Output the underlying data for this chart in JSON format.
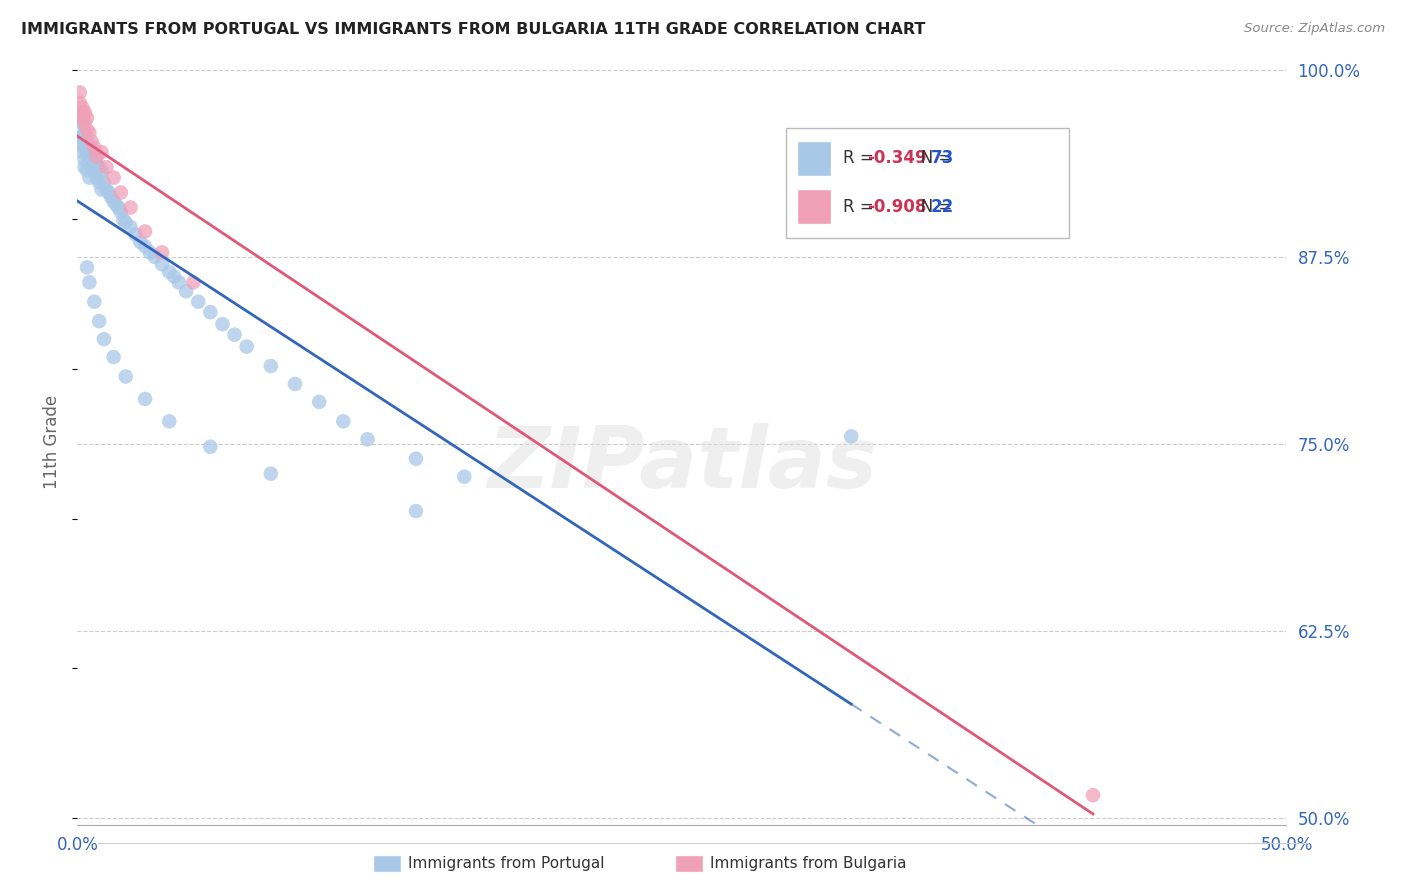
{
  "title": "IMMIGRANTS FROM PORTUGAL VS IMMIGRANTS FROM BULGARIA 11TH GRADE CORRELATION CHART",
  "source": "Source: ZipAtlas.com",
  "ylabel": "11th Grade",
  "xlim": [
    0.0,
    0.5
  ],
  "ylim": [
    0.495,
    1.008
  ],
  "xticks": [
    0.0,
    0.1,
    0.2,
    0.3,
    0.4,
    0.5
  ],
  "xticklabels": [
    "0.0%",
    "",
    "",
    "",
    "",
    "50.0%"
  ],
  "yticks_right": [
    1.0,
    0.875,
    0.75,
    0.625,
    0.5
  ],
  "ytick_right_labels": [
    "100.0%",
    "87.5%",
    "75.0%",
    "62.5%",
    "50.0%"
  ],
  "legend_label1": "Immigrants from Portugal",
  "legend_label2": "Immigrants from Bulgaria",
  "blue_scatter_color": "#a8c8e8",
  "blue_line_color": "#3366bb",
  "pink_scatter_color": "#f0a0b8",
  "pink_line_color": "#e05878",
  "r_color": "#cc3355",
  "n_color": "#2255cc",
  "watermark": "ZIPatlas",
  "portugal_x": [
    0.001,
    0.001,
    0.001,
    0.002,
    0.002,
    0.002,
    0.002,
    0.003,
    0.003,
    0.003,
    0.003,
    0.004,
    0.004,
    0.004,
    0.005,
    0.005,
    0.005,
    0.006,
    0.006,
    0.007,
    0.007,
    0.008,
    0.008,
    0.009,
    0.009,
    0.01,
    0.01,
    0.011,
    0.012,
    0.013,
    0.014,
    0.015,
    0.016,
    0.017,
    0.018,
    0.019,
    0.02,
    0.022,
    0.024,
    0.026,
    0.028,
    0.03,
    0.032,
    0.035,
    0.038,
    0.04,
    0.042,
    0.045,
    0.05,
    0.055,
    0.06,
    0.065,
    0.07,
    0.08,
    0.09,
    0.1,
    0.11,
    0.12,
    0.14,
    0.16,
    0.004,
    0.005,
    0.007,
    0.009,
    0.011,
    0.015,
    0.02,
    0.028,
    0.038,
    0.055,
    0.08,
    0.14,
    0.32
  ],
  "portugal_y": [
    0.97,
    0.965,
    0.955,
    0.965,
    0.955,
    0.95,
    0.945,
    0.958,
    0.948,
    0.94,
    0.935,
    0.952,
    0.943,
    0.933,
    0.948,
    0.938,
    0.928,
    0.945,
    0.935,
    0.942,
    0.932,
    0.938,
    0.928,
    0.935,
    0.925,
    0.932,
    0.92,
    0.925,
    0.92,
    0.918,
    0.915,
    0.912,
    0.91,
    0.908,
    0.905,
    0.9,
    0.898,
    0.895,
    0.89,
    0.885,
    0.882,
    0.878,
    0.875,
    0.87,
    0.865,
    0.862,
    0.858,
    0.852,
    0.845,
    0.838,
    0.83,
    0.823,
    0.815,
    0.802,
    0.79,
    0.778,
    0.765,
    0.753,
    0.74,
    0.728,
    0.868,
    0.858,
    0.845,
    0.832,
    0.82,
    0.808,
    0.795,
    0.78,
    0.765,
    0.748,
    0.73,
    0.705,
    0.755
  ],
  "bulgaria_x": [
    0.001,
    0.001,
    0.002,
    0.002,
    0.003,
    0.003,
    0.004,
    0.004,
    0.005,
    0.006,
    0.007,
    0.008,
    0.01,
    0.012,
    0.015,
    0.018,
    0.022,
    0.028,
    0.035,
    0.048,
    0.42,
    0.003
  ],
  "bulgaria_y": [
    0.985,
    0.978,
    0.975,
    0.968,
    0.972,
    0.965,
    0.968,
    0.96,
    0.958,
    0.952,
    0.948,
    0.942,
    0.945,
    0.935,
    0.928,
    0.918,
    0.908,
    0.892,
    0.878,
    0.858,
    0.515,
    0.97
  ],
  "portugal_line_x0": 0.0,
  "portugal_line_x1": 0.5,
  "bulgaria_line_x0": 0.0,
  "bulgaria_line_x1": 0.5
}
